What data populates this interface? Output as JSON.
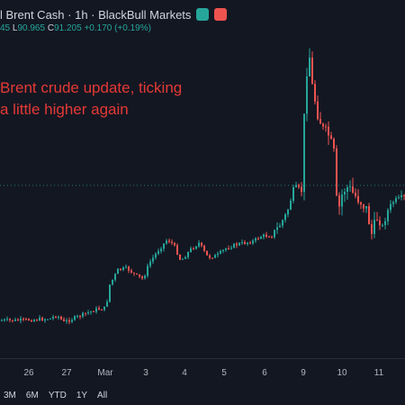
{
  "header": {
    "title": "l Brent Cash · 1h · BlackBull Markets",
    "btn_green_color": "#26a69a",
    "btn_red_color": "#ef5350"
  },
  "ohlc": {
    "open_tail": "45",
    "low_label": "L",
    "low": "90.965",
    "close_label": "C",
    "close": "91.205",
    "change": "+0.170 (+0.19%)"
  },
  "annotation": {
    "line1": "Brent crude update, ticking",
    "line2": "a little higher again"
  },
  "xaxis": {
    "labels": [
      "26",
      "27",
      "Mar",
      "3",
      "4",
      "5",
      "6",
      "9",
      "10",
      "11"
    ]
  },
  "timeframes": [
    "3M",
    "6M",
    "YTD",
    "1Y",
    "All"
  ],
  "colors": {
    "up": "#26a69a",
    "down": "#ef5350",
    "dotted_line": "#26a69a",
    "background": "#131722"
  }
}
